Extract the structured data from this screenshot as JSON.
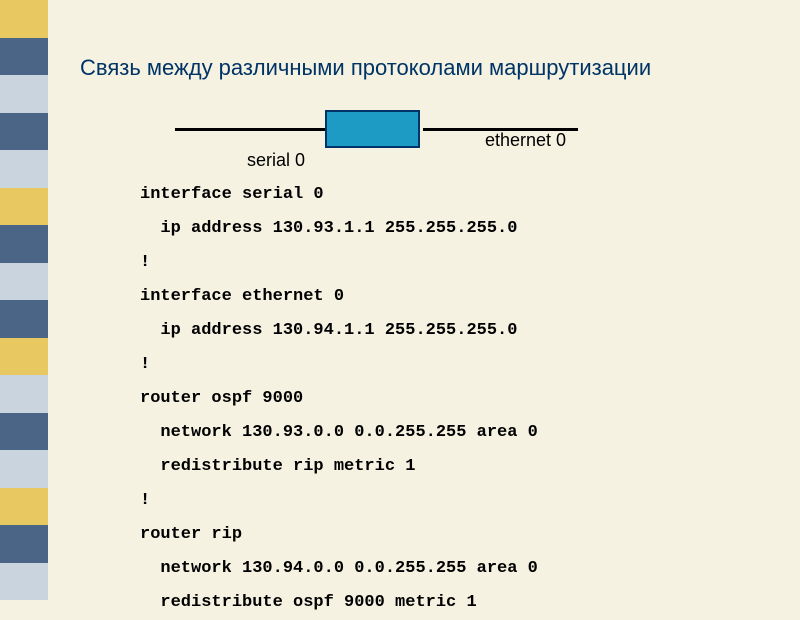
{
  "title": "Связь между различными протоколами  маршрутизации",
  "sidebar": {
    "stripes": [
      "#e8c860",
      "#4a6585",
      "#c9d4de",
      "#4a6585",
      "#c9d4de",
      "#e8c860",
      "#4a6585",
      "#c9d4de",
      "#4a6585",
      "#e8c860",
      "#c9d4de",
      "#4a6585",
      "#c9d4de",
      "#e8c860",
      "#4a6585",
      "#c9d4de"
    ]
  },
  "diagram": {
    "left_label": "serial 0",
    "right_label": "ethernet 0",
    "router_fill": "#1e9bc4",
    "router_border": "#003366",
    "line_color": "#000000"
  },
  "config": {
    "lines": [
      "interface serial 0",
      "  ip address 130.93.1.1 255.255.255.0",
      "!",
      "interface ethernet 0",
      "  ip address 130.94.1.1 255.255.255.0",
      "!",
      "router ospf 9000",
      "  network 130.93.0.0 0.0.255.255 area 0",
      "  redistribute rip metric 1",
      "!",
      "router rip",
      "  network 130.94.0.0 0.0.255.255 area 0",
      "  redistribute ospf 9000 metric 1"
    ]
  },
  "colors": {
    "background": "#f5f2e2",
    "title_color": "#003366"
  }
}
